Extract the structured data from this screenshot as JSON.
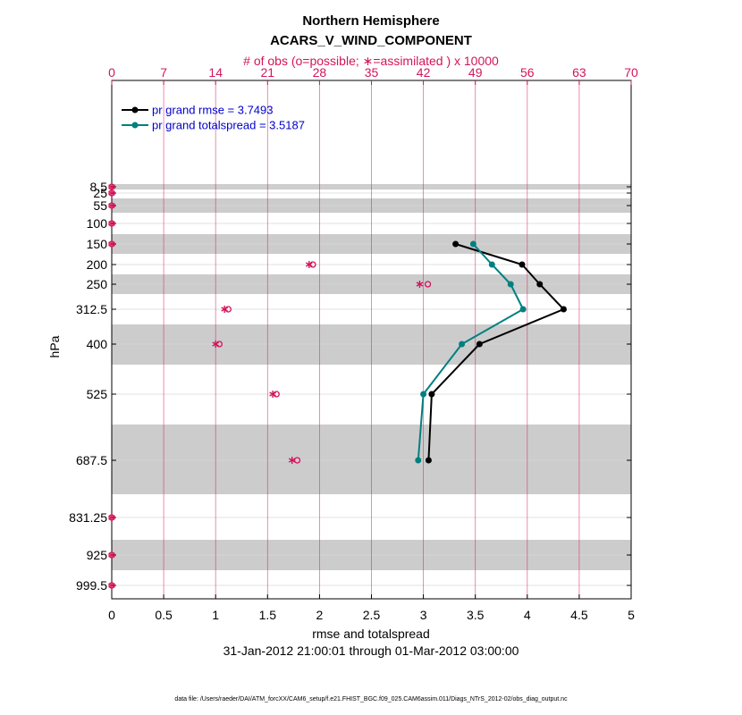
{
  "colors": {
    "rmse": "#000000",
    "spread": "#008080",
    "obs": "#d4145a",
    "band": "#cccccc",
    "legend_text": "#0000cc"
  },
  "chart_data": {
    "type": "line",
    "title": "Northern Hemisphere",
    "subtitle": "ACARS_V_WIND_COMPONENT",
    "xlabel": "rmse and totalspread",
    "ylabel": "hPa",
    "date_range": "31-Jan-2012 21:00:01 through 01-Mar-2012 03:00:00",
    "footer": "data file: /Users/raeder/DAI/ATM_forcXX/CAM6_setup/f.e21.FHIST_BGC.f09_025.CAM6assim.011/Diags_NTrS_2012-02/obs_diag_output.nc",
    "xlim": [
      0,
      5
    ],
    "x_ticks": [
      "0",
      "0.5",
      "1",
      "1.5",
      "2",
      "2.5",
      "3",
      "3.5",
      "4",
      "4.5",
      "5"
    ],
    "top_axis": {
      "label": "# of obs (o=possible; ∗=assimilated ) x 10000",
      "lim": [
        0,
        70
      ],
      "ticks": [
        "0",
        "7",
        "14",
        "21",
        "28",
        "35",
        "42",
        "49",
        "56",
        "63",
        "70"
      ]
    },
    "levels": [
      8.5,
      25,
      55,
      100,
      150,
      200,
      250,
      312.5,
      400,
      525,
      687.5,
      831.25,
      925,
      999.5
    ],
    "level_labels": [
      "8.5",
      "25",
      "55",
      "100",
      "150",
      "200",
      "250",
      "312.5",
      "400",
      "525",
      "687.5",
      "831.25",
      "925",
      "999.5"
    ],
    "series": [
      {
        "name": "rmse",
        "legend": "pr grand rmse = 3.7493",
        "levels": [
          150,
          200,
          250,
          312.5,
          400,
          525,
          687.5
        ],
        "values": [
          3.31,
          3.95,
          4.12,
          4.35,
          3.54,
          3.08,
          3.05
        ]
      },
      {
        "name": "totalspread",
        "legend": "pr grand totalspread = 3.5187",
        "levels": [
          150,
          200,
          250,
          312.5,
          400,
          525,
          687.5
        ],
        "values": [
          3.48,
          3.66,
          3.84,
          3.96,
          3.37,
          3.0,
          2.95
        ]
      }
    ],
    "obs_counts": {
      "levels": [
        8.5,
        25,
        55,
        100,
        150,
        200,
        250,
        312.5,
        400,
        525,
        687.5,
        831.25,
        925,
        999.5
      ],
      "possible": [
        0,
        0,
        0,
        0,
        0,
        27.1,
        42.6,
        15.7,
        14.5,
        22.2,
        25.0,
        0,
        0,
        0
      ],
      "assimilated": [
        0,
        0,
        0,
        0,
        0,
        26.6,
        41.5,
        15.2,
        14.0,
        21.7,
        24.3,
        0,
        0,
        0
      ]
    }
  }
}
